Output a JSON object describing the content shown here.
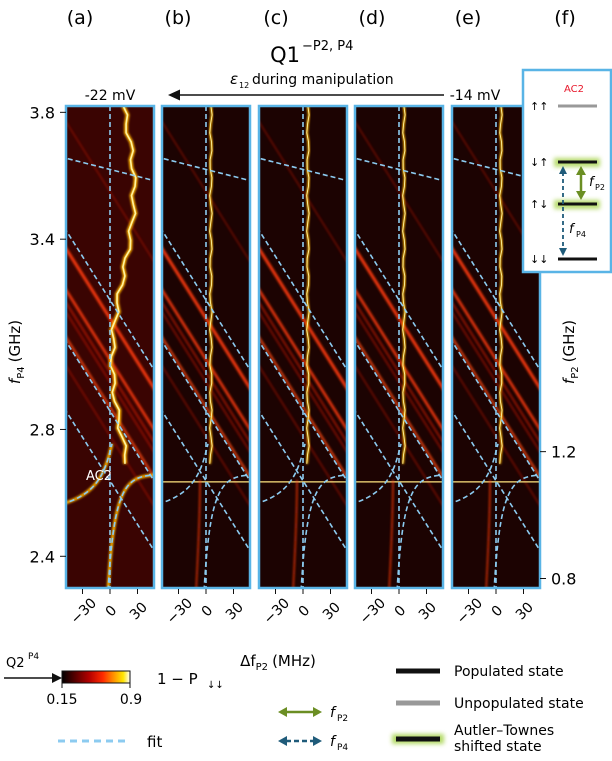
{
  "chart_data": {
    "type": "heatmap",
    "title": "Q1",
    "title_superscript": "−P2, P4",
    "panel_labels": [
      "(a)",
      "(b)",
      "(c)",
      "(d)",
      "(e)",
      "(f)"
    ],
    "detuning_label": "ε",
    "detuning_sub": "12",
    "detuning_text": "during manipulation",
    "voltage_left": "-22 mV",
    "voltage_right": "-14 mV",
    "xlabel": "Δf",
    "xlabel_sub": "P2",
    "xlabel_unit": "(MHz)",
    "xticks": [
      -30,
      0,
      30
    ],
    "xtick_labels": [
      "−30",
      "0",
      "30"
    ],
    "xlim": [
      -48,
      48
    ],
    "ylabel_left": "f",
    "ylabel_left_sub": "P4",
    "ylabel_left_unit": "(GHz)",
    "ylim_left": [
      2.3,
      3.82
    ],
    "yticks_left": [
      "2.4",
      "2.8",
      "3.4",
      "3.8"
    ],
    "ylabel_right": "f",
    "ylabel_right_sub": "P2",
    "ylabel_right_unit": "(GHz)",
    "ylim_right": [
      0.77,
      2.29
    ],
    "yticks_right": [
      "0.8",
      "1.2"
    ],
    "arrow_label": "Q2",
    "arrow_label_sup": "P4",
    "arrow_y": 2.66,
    "ac_label": "AC2",
    "ac_position": {
      "x": 0,
      "y": 2.66
    },
    "colorbar": {
      "label": "1 − P",
      "label_sub": "↓↓",
      "min": 0.15,
      "max": 0.9,
      "min_label": "0.15",
      "max_label": "0.9",
      "colormap": [
        "#000000",
        "#5a0000",
        "#b30000",
        "#ff2a00",
        "#ff8c00",
        "#ffe600",
        "#ffffff"
      ]
    },
    "panels": [
      {
        "panel": "a",
        "anticrossing_y": 2.66,
        "fit_slope": -0.0064,
        "resonance_y": 3.63
      },
      {
        "panel": "b",
        "anticrossing_y": 2.66,
        "fit_slope": -0.0064
      },
      {
        "panel": "c",
        "anticrossing_y": 2.66,
        "fit_slope": -0.0064
      },
      {
        "panel": "d",
        "anticrossing_y": 2.66,
        "fit_slope": -0.0064
      },
      {
        "panel": "e",
        "anticrossing_y": 2.66,
        "fit_slope": -0.0064
      }
    ]
  },
  "inset": {
    "ac_label": "AC2",
    "ac_color": "#e8192c",
    "states": [
      "↑↑",
      "↓↑",
      "↑↓",
      "↓↓"
    ],
    "fP2_label": "f",
    "fP2_sub": "P2",
    "fP4_label": "f",
    "fP4_sub": "P4"
  },
  "legend": {
    "fit_label": "fit",
    "fP2_label": "f",
    "fP2_sub": "P2",
    "fP4_label": "f",
    "fP4_sub": "P4",
    "populated": "Populated state",
    "unpopulated": "Unpopulated state",
    "autler_line1": "Autler–Townes",
    "autler_line2": "shifted state"
  },
  "colors": {
    "panel_border": "#59b4e6",
    "fit_line": "#8ccbf0",
    "green_arrow": "#6b8e23",
    "teal_arrow": "#1f5b7a",
    "populated": "#111111",
    "unpopulated": "#999999",
    "autler_glow": "#9acd32"
  }
}
